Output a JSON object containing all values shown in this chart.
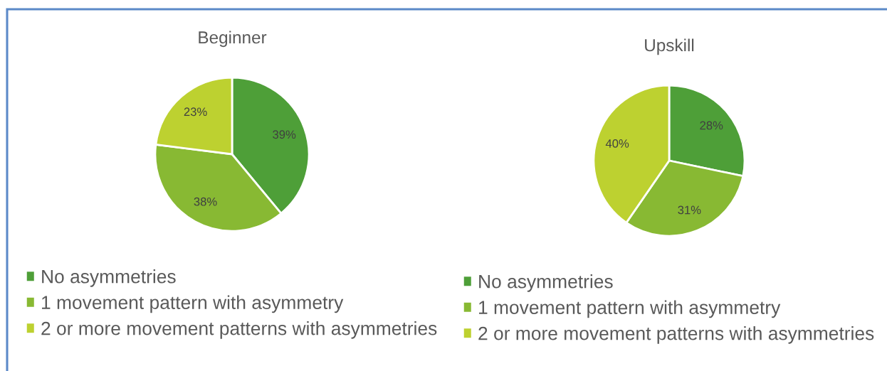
{
  "chart_data": [
    {
      "type": "pie",
      "title": "Beginner",
      "categories": [
        "No asymmetries",
        "1 movement pattern with asymmetry",
        "2 or more movement patterns with asymmetries"
      ],
      "values": [
        39,
        38,
        23
      ],
      "colors": [
        "#4e9f38",
        "#88b933",
        "#bdd130"
      ],
      "value_labels": [
        "39%",
        "38%",
        "23%"
      ],
      "legend": "bottom"
    },
    {
      "type": "pie",
      "title": "Upskill",
      "categories": [
        "No asymmetries",
        "1 movement pattern with asymmetry",
        "2 or more movement patterns with asymmetries"
      ],
      "values": [
        28,
        31,
        40
      ],
      "colors": [
        "#4e9f38",
        "#88b933",
        "#bdd130"
      ],
      "value_labels": [
        "28%",
        "31%",
        "40%"
      ],
      "legend": "bottom"
    }
  ]
}
